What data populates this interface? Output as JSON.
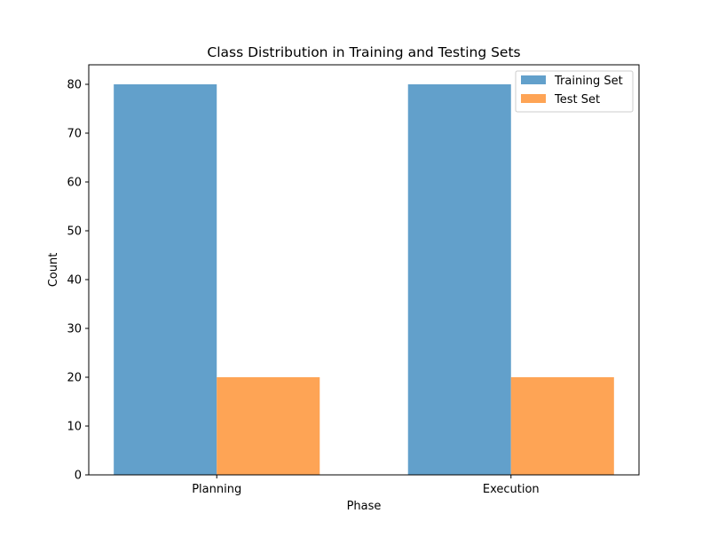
{
  "chart_data": {
    "type": "bar",
    "title": "Class Distribution in Training and Testing Sets",
    "xlabel": "Phase",
    "ylabel": "Count",
    "categories": [
      "Planning",
      "Execution"
    ],
    "series": [
      {
        "name": "Training Set",
        "values": [
          80,
          80
        ],
        "color": "#62a0cb"
      },
      {
        "name": "Test Set",
        "values": [
          20,
          20
        ],
        "color": "#fea455"
      }
    ],
    "ylim": [
      0,
      84
    ],
    "yticks": [
      0,
      10,
      20,
      30,
      40,
      50,
      60,
      70,
      80
    ],
    "grid": false,
    "legend_position": "top-right"
  }
}
